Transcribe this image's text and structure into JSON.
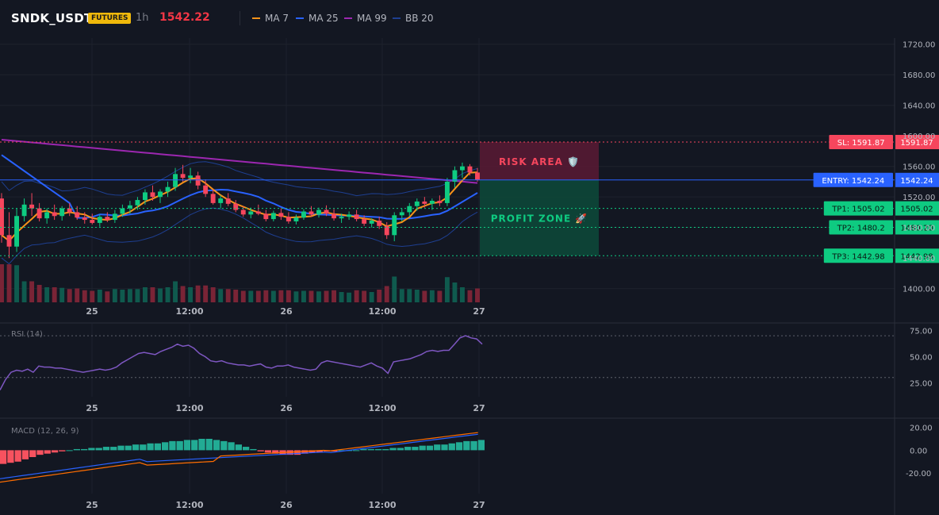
{
  "header": {
    "symbol": "SNDK_USDT",
    "badge": "FUTURES",
    "timeframe": "1h",
    "price": "1542.22",
    "legend": [
      {
        "label": "MA 7",
        "color": "#f7931a"
      },
      {
        "label": "MA 25",
        "color": "#2962ff"
      },
      {
        "label": "MA 99",
        "color": "#9c27b0"
      },
      {
        "label": "BB 20",
        "color": "#1e3f91"
      }
    ]
  },
  "colors": {
    "up": "#0ecb81",
    "down": "#f6465d",
    "bg": "#131722",
    "grid": "#1e222d",
    "sl": "#f6465d",
    "tp": "#0ecb81",
    "entry": "#2962ff"
  },
  "levels": {
    "sl": {
      "label": "SL: 1591.87",
      "value": 1591.87,
      "axis": "1591.87"
    },
    "entry": {
      "label": "ENTRY: 1542.24",
      "value": 1542.24,
      "axis": "1542.24"
    },
    "tp": [
      {
        "label": "TP1: 1505.02",
        "value": 1505.02,
        "axis": "1505.02"
      },
      {
        "label": "TP2: 1480.2",
        "value": 1480.2,
        "axis": "1480.20"
      },
      {
        "label": "TP3: 1442.98",
        "value": 1442.98,
        "axis": "1442.98"
      }
    ]
  },
  "zones": {
    "risk": "RISK AREA 🛡️",
    "profit": "PROFIT ZONE 🚀"
  },
  "chart_data": [
    {
      "type": "candlestick",
      "title": "SNDK_USDT 1h",
      "x_tick_labels": [
        "25",
        "12:00",
        "26",
        "12:00",
        "27"
      ],
      "y_tick_labels": [
        "1720.00",
        "1680.00",
        "1640.00",
        "1600.00",
        "1560.00",
        "1520.00",
        "1480.00",
        "1440.00",
        "1400.00"
      ],
      "ylim": [
        1382,
        1728
      ],
      "candles_ohlc": [
        [
          1518,
          1525,
          1460,
          1470
        ],
        [
          1470,
          1500,
          1440,
          1455
        ],
        [
          1455,
          1505,
          1448,
          1495
        ],
        [
          1495,
          1518,
          1488,
          1510
        ],
        [
          1510,
          1525,
          1495,
          1505
        ],
        [
          1505,
          1512,
          1488,
          1492
        ],
        [
          1492,
          1505,
          1485,
          1500
        ],
        [
          1500,
          1510,
          1490,
          1495
        ],
        [
          1495,
          1508,
          1489,
          1505
        ],
        [
          1505,
          1512,
          1495,
          1500
        ],
        [
          1500,
          1508,
          1490,
          1493
        ],
        [
          1493,
          1500,
          1485,
          1490
        ],
        [
          1490,
          1498,
          1484,
          1486
        ],
        [
          1486,
          1497,
          1481,
          1494
        ],
        [
          1494,
          1500,
          1487,
          1490
        ],
        [
          1490,
          1503,
          1486,
          1498
        ],
        [
          1498,
          1510,
          1494,
          1505
        ],
        [
          1505,
          1515,
          1498,
          1509
        ],
        [
          1509,
          1520,
          1503,
          1516
        ],
        [
          1516,
          1530,
          1510,
          1526
        ],
        [
          1526,
          1535,
          1515,
          1520
        ],
        [
          1520,
          1530,
          1512,
          1527
        ],
        [
          1527,
          1540,
          1520,
          1533
        ],
        [
          1533,
          1558,
          1528,
          1550
        ],
        [
          1550,
          1562,
          1540,
          1545
        ],
        [
          1545,
          1558,
          1538,
          1548
        ],
        [
          1548,
          1553,
          1530,
          1535
        ],
        [
          1535,
          1543,
          1520,
          1524
        ],
        [
          1524,
          1530,
          1510,
          1512
        ],
        [
          1512,
          1522,
          1505,
          1518
        ],
        [
          1518,
          1525,
          1508,
          1511
        ],
        [
          1511,
          1516,
          1500,
          1503
        ],
        [
          1503,
          1508,
          1494,
          1497
        ],
        [
          1497,
          1506,
          1492,
          1501
        ],
        [
          1501,
          1510,
          1496,
          1498
        ],
        [
          1498,
          1503,
          1488,
          1491
        ],
        [
          1491,
          1502,
          1488,
          1499
        ],
        [
          1499,
          1505,
          1490,
          1494
        ],
        [
          1494,
          1500,
          1485,
          1488
        ],
        [
          1488,
          1497,
          1484,
          1493
        ],
        [
          1493,
          1504,
          1490,
          1501
        ],
        [
          1501,
          1508,
          1494,
          1497
        ],
        [
          1497,
          1506,
          1493,
          1503
        ],
        [
          1503,
          1509,
          1495,
          1498
        ],
        [
          1498,
          1504,
          1489,
          1492
        ],
        [
          1492,
          1498,
          1486,
          1494
        ],
        [
          1494,
          1501,
          1490,
          1497
        ],
        [
          1497,
          1503,
          1488,
          1491
        ],
        [
          1491,
          1496,
          1482,
          1485
        ],
        [
          1485,
          1492,
          1480,
          1489
        ],
        [
          1489,
          1494,
          1478,
          1482
        ],
        [
          1482,
          1487,
          1465,
          1470
        ],
        [
          1470,
          1500,
          1462,
          1496
        ],
        [
          1496,
          1505,
          1488,
          1500
        ],
        [
          1500,
          1512,
          1495,
          1508
        ],
        [
          1508,
          1518,
          1502,
          1514
        ],
        [
          1514,
          1520,
          1506,
          1511
        ],
        [
          1511,
          1518,
          1503,
          1515
        ],
        [
          1515,
          1522,
          1508,
          1512
        ],
        [
          1512,
          1545,
          1508,
          1540
        ],
        [
          1540,
          1560,
          1532,
          1555
        ],
        [
          1555,
          1565,
          1545,
          1560
        ],
        [
          1560,
          1563,
          1548,
          1552
        ],
        [
          1552,
          1558,
          1540,
          1542
        ]
      ]
    },
    {
      "type": "line",
      "title": "RSI (14)",
      "y_tick_labels": [
        "75.00",
        "50.00",
        "25.00"
      ],
      "ylim": [
        10,
        80
      ],
      "values": [
        18,
        28,
        35,
        37,
        36,
        38,
        35,
        41,
        40,
        40,
        39,
        39,
        38,
        37,
        36,
        35,
        36,
        37,
        38,
        37,
        38,
        40,
        44,
        47,
        50,
        53,
        54,
        53,
        52,
        55,
        57,
        59,
        62,
        60,
        61,
        58,
        53,
        50,
        46,
        45,
        46,
        44,
        43,
        42,
        42,
        41,
        42,
        43,
        40,
        39,
        41,
        41,
        42,
        40,
        39,
        38,
        37,
        38,
        44,
        46,
        45,
        44,
        43,
        42,
        41,
        40,
        42,
        44,
        41,
        39,
        34,
        45,
        46,
        47,
        48,
        50,
        52,
        55,
        56,
        55,
        56,
        56,
        62,
        68,
        70,
        68,
        67,
        62
      ]
    },
    {
      "type": "bar",
      "title": "MACD (12, 26, 9)",
      "y_tick_labels": [
        "20.00",
        "0.00",
        "-20.00"
      ],
      "ylim": [
        -38,
        26
      ],
      "histogram": [
        -12,
        -11,
        -10,
        -8,
        -6,
        -4,
        -3,
        -2,
        -1,
        0,
        1,
        1,
        2,
        2,
        3,
        3,
        4,
        4,
        5,
        5,
        6,
        6,
        7,
        8,
        8,
        9,
        9,
        10,
        10,
        9,
        8,
        7,
        5,
        3,
        1,
        -1,
        -2,
        -3,
        -4,
        -4,
        -4,
        -3,
        -2,
        -2,
        -1,
        -1,
        0,
        0,
        0,
        1,
        1,
        1,
        1,
        2,
        2,
        3,
        3,
        4,
        4,
        5,
        5,
        6,
        7,
        8,
        8,
        9
      ]
    }
  ]
}
